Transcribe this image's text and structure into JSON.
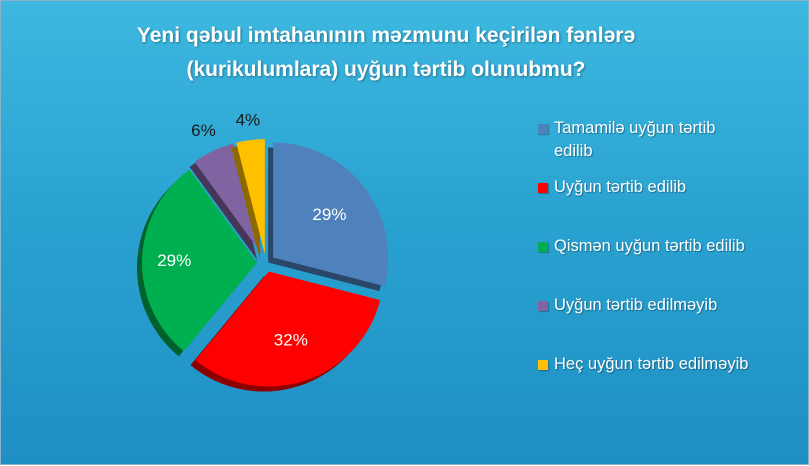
{
  "chart_data": {
    "type": "pie",
    "title_lines": [
      "Yeni qəbul imtahanının məzmunu keçirilən fənlərə",
      "(kurikulumlara)  uyğun tərtib olunubmu?"
    ],
    "categories": [
      "Tamamilə uyğun tərtib edilib",
      "Uyğun tərtib edilib",
      "Qismən uyğun tərtib edilib",
      "Uyğun tərtib edilməyib",
      "Heç uyğun tərtib edilməyib"
    ],
    "values": [
      29,
      32,
      29,
      6,
      4
    ],
    "data_labels": [
      "29%",
      "32%",
      "29%",
      "6%",
      "4%"
    ],
    "colors": [
      "#4f81bd",
      "#ff0000",
      "#00b050",
      "#8064a2",
      "#ffc000"
    ],
    "legend_position": "right",
    "exploded": true
  },
  "legend_lines": [
    [
      "Tamamilə uyğun tərtib",
      "edilib"
    ],
    [
      "Uyğun tərtib edilib"
    ],
    [
      "Qismən uyğun tərtib edilib"
    ],
    [
      "Uyğun tərtib edilməyib"
    ],
    [
      "Heç uyğun tərtib edilməyib"
    ]
  ]
}
